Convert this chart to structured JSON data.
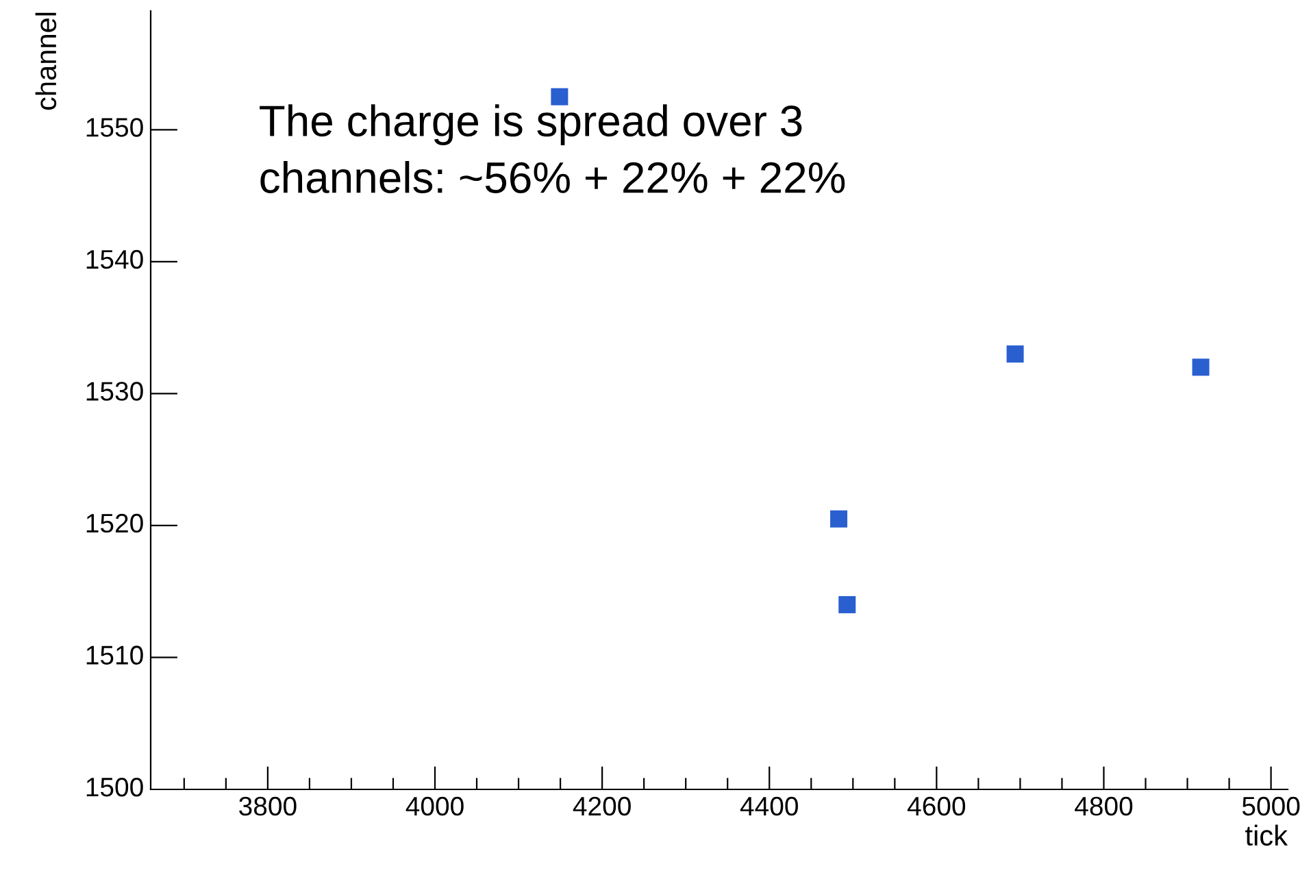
{
  "chart_data": {
    "type": "scatter",
    "xlabel": "tick",
    "ylabel": "channel",
    "x": [
      4149,
      4483,
      4493,
      4694,
      4916
    ],
    "values": [
      1552.5,
      1520.5,
      1514,
      1533,
      1532
    ],
    "color": "#2a5fd0",
    "marker": "square",
    "xlim": [
      3660,
      5020
    ],
    "ylim": [
      1500,
      1559
    ],
    "xticks": [
      {
        "value": 3700,
        "label": null
      },
      {
        "value": 3750,
        "label": null
      },
      3800,
      {
        "value": 3850,
        "label": null
      },
      {
        "value": 3900,
        "label": null
      },
      {
        "value": 3950,
        "label": null
      },
      4000,
      {
        "value": 4050,
        "label": null
      },
      {
        "value": 4100,
        "label": null
      },
      {
        "value": 4150,
        "label": null
      },
      4200,
      {
        "value": 4250,
        "label": null
      },
      {
        "value": 4300,
        "label": null
      },
      {
        "value": 4350,
        "label": null
      },
      4400,
      {
        "value": 4450,
        "label": null
      },
      {
        "value": 4500,
        "label": null
      },
      {
        "value": 4550,
        "label": null
      },
      4600,
      {
        "value": 4650,
        "label": null
      },
      {
        "value": 4700,
        "label": null
      },
      {
        "value": 4750,
        "label": null
      },
      4800,
      {
        "value": 4850,
        "label": null
      },
      {
        "value": 4900,
        "label": null
      },
      {
        "value": 4950,
        "label": null
      },
      5000
    ],
    "yticks": [
      1500,
      1510,
      1520,
      1530,
      1540,
      1550
    ],
    "annotations": [
      "The charge is spread over 3\nchannels: ~56% + 22% + 22%"
    ],
    "grid": false,
    "legend": false
  }
}
